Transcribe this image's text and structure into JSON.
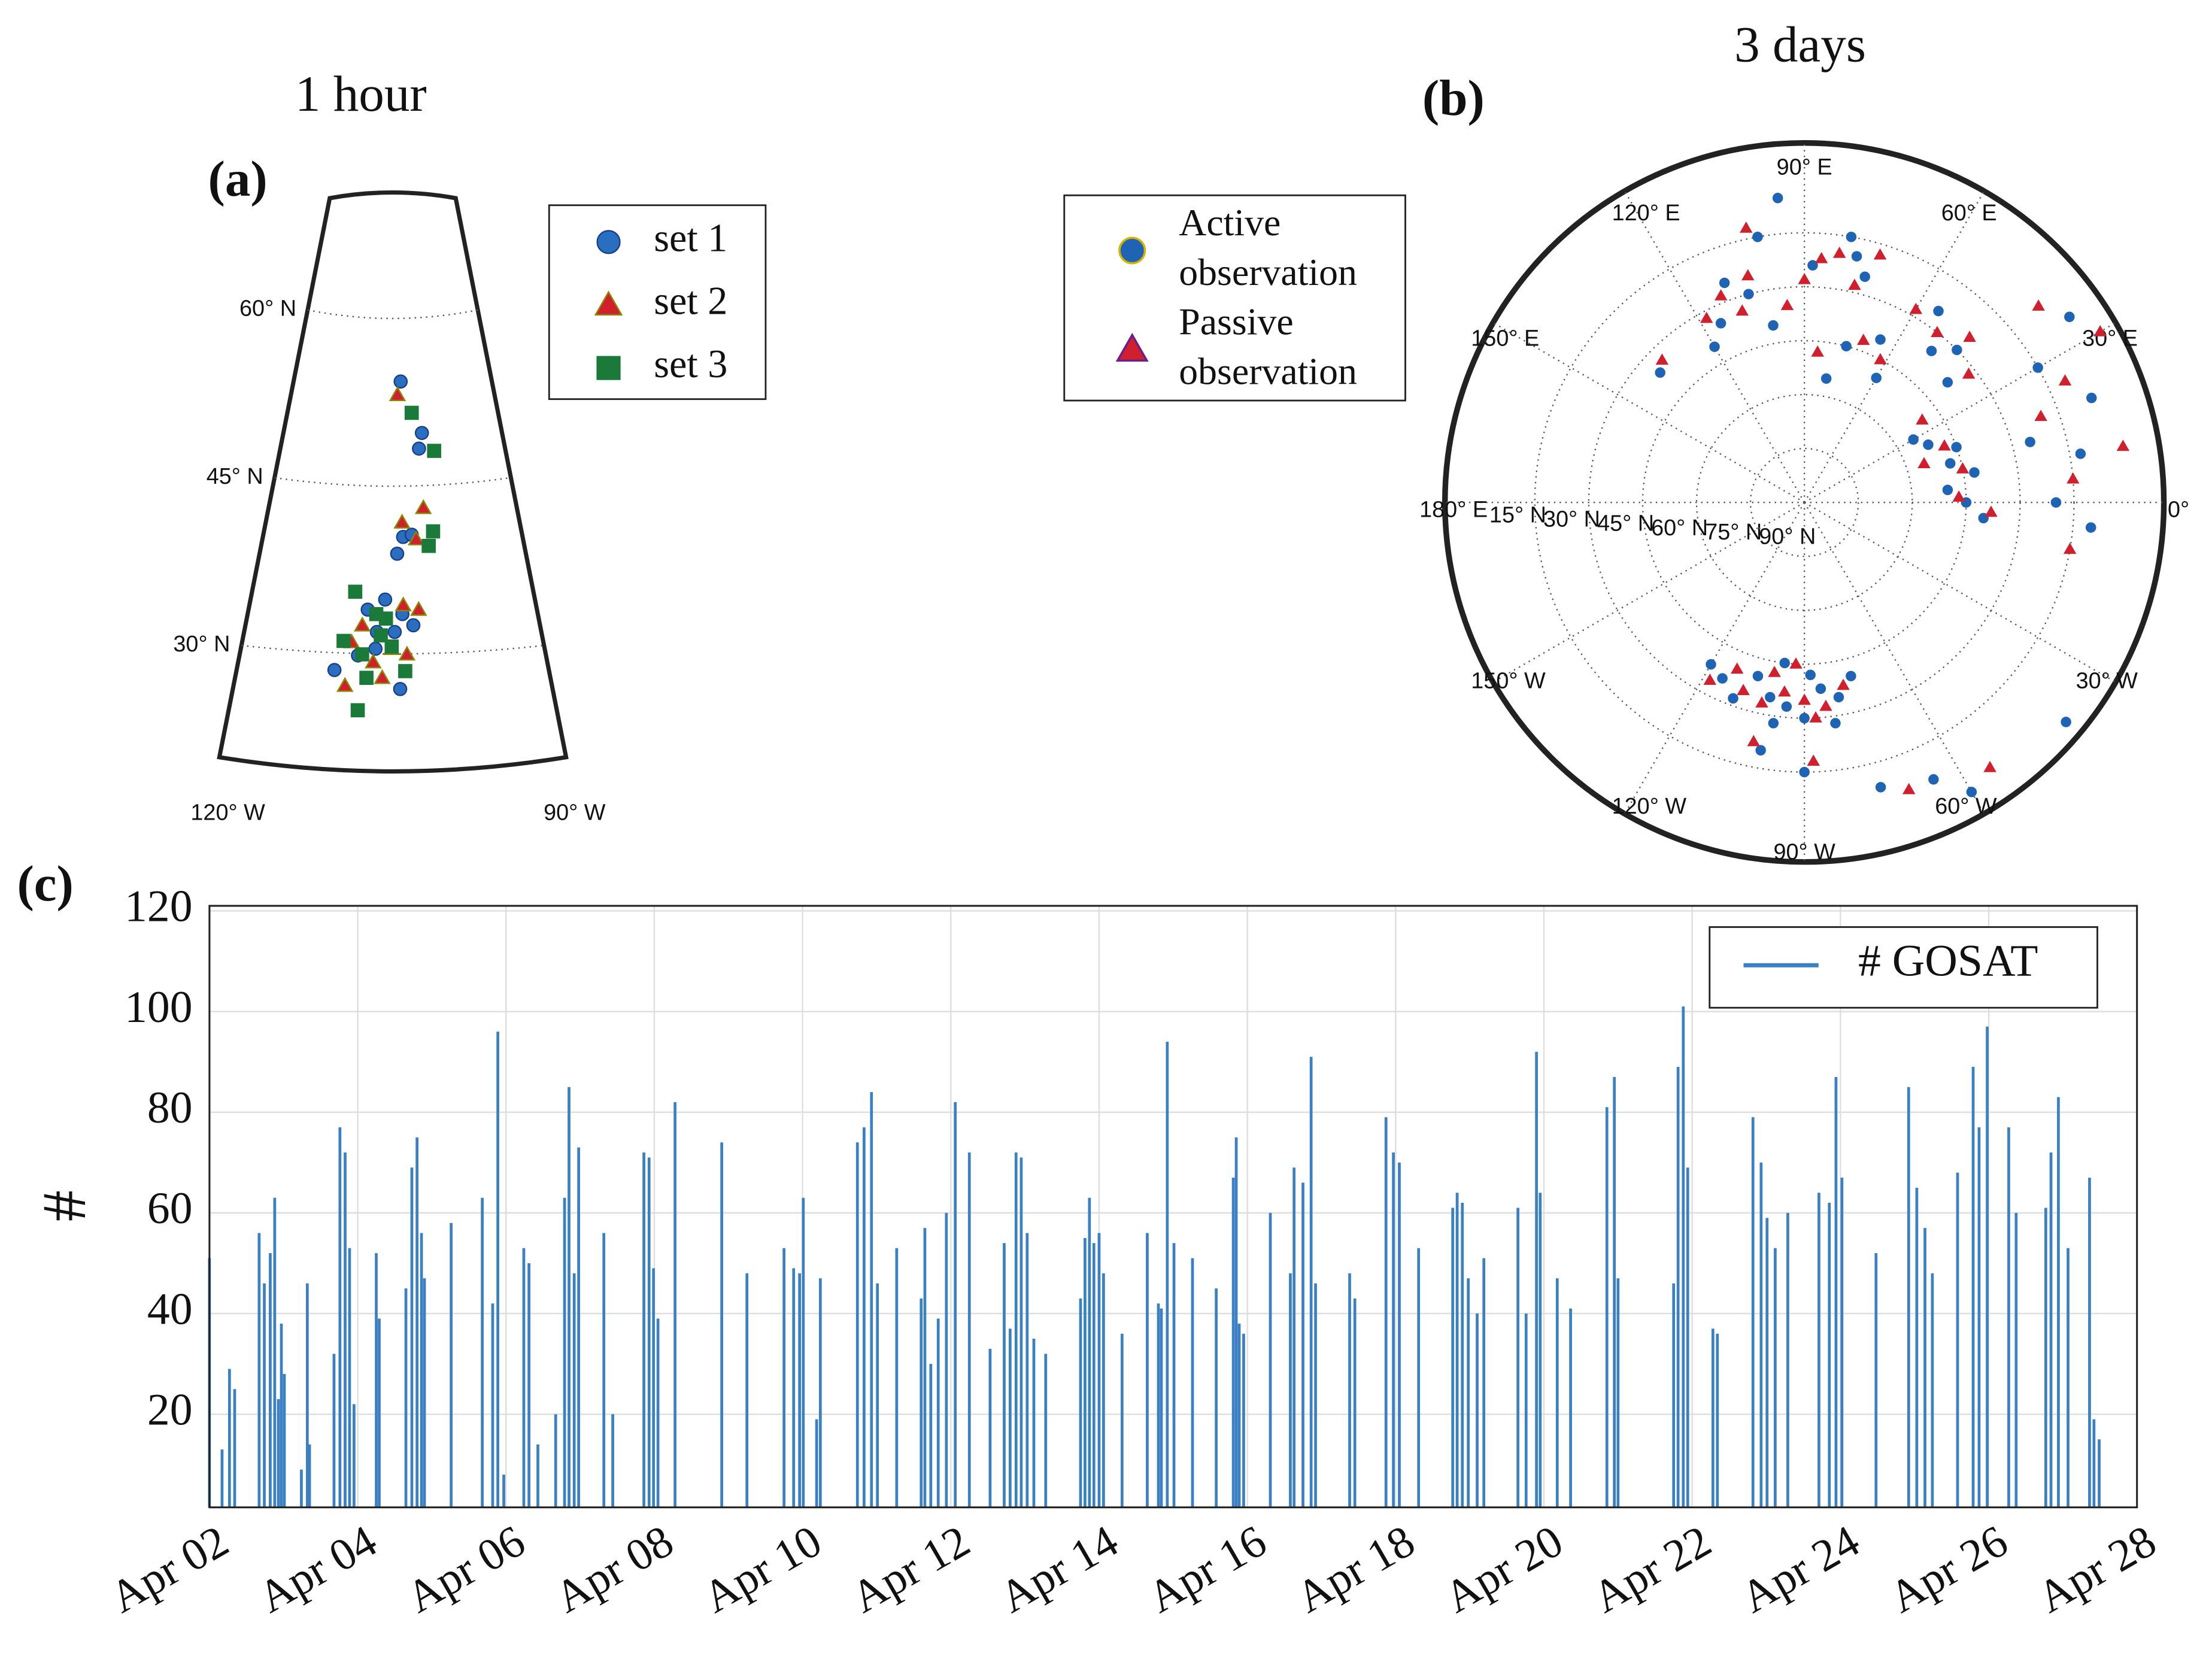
{
  "chart_data": [
    {
      "type": "conic_map",
      "title": "1 hour",
      "panel_label": "(a)",
      "xlim": [
        -120,
        -90
      ],
      "ylim": [
        20,
        70
      ],
      "xticks": [
        {
          "value": -120,
          "label": "120° W"
        },
        {
          "value": -90,
          "label": "90° W"
        }
      ],
      "yticks": [
        {
          "value": 30,
          "label": "30° N"
        },
        {
          "value": 45,
          "label": "45° N"
        },
        {
          "value": 60,
          "label": "60° N"
        }
      ],
      "grid": true,
      "series": [
        {
          "name": "set 1",
          "marker": "circle",
          "color": "#2a6fbf",
          "edgecolor": "#1a3f8a",
          "x": [
            -103.8,
            -101.0,
            -101.5,
            -103.8,
            -102.8,
            -104.5,
            -107.6,
            -105.8,
            -104.0,
            -106.6,
            -104.8,
            -102.9,
            -110.6,
            -106.7,
            -104.3,
            -108.4
          ],
          "y": [
            53.6,
            49.0,
            47.6,
            39.7,
            39.9,
            38.2,
            33.2,
            34.1,
            32.8,
            31.2,
            31.2,
            31.8,
            27.8,
            29.7,
            26.1,
            29.1
          ]
        },
        {
          "name": "set 2",
          "marker": "triangle",
          "color": "#d0202e",
          "edgecolor": "#8a8a00",
          "x": [
            -104.3,
            -101.3,
            -103.9,
            -102.3,
            -108.1,
            -106.9,
            -103.9,
            -102.3,
            -105.1,
            -103.6,
            -109.5,
            -106.0,
            -109.1
          ],
          "y": [
            52.4,
            42.3,
            41.0,
            39.5,
            31.8,
            28.5,
            33.6,
            33.2,
            29.7,
            29.2,
            26.4,
            27.1,
            30.3
          ]
        },
        {
          "name": "set 3",
          "marker": "square",
          "color": "#1b7a3a",
          "edgecolor": "#1b7a3a",
          "x": [
            -102.3,
            -99.5,
            -100.3,
            -100.9,
            -109.0,
            -109.9,
            -106.7,
            -105.7,
            -106.2,
            -105.1,
            -103.8,
            -107.5,
            -108.2,
            -108.0
          ],
          "y": [
            50.8,
            47.4,
            40.2,
            38.9,
            34.8,
            30.4,
            32.8,
            32.4,
            30.9,
            29.9,
            27.7,
            27.1,
            24.2,
            29.2
          ]
        }
      ]
    },
    {
      "type": "polar_map",
      "title": "3 days",
      "panel_label": "(b)",
      "ylim": [
        -10,
        90
      ],
      "xticks": [
        {
          "value": 0,
          "label": "0°"
        },
        {
          "value": 30,
          "label": "30° E"
        },
        {
          "value": 60,
          "label": "60° E"
        },
        {
          "value": 90,
          "label": "90° E"
        },
        {
          "value": 120,
          "label": "120° E"
        },
        {
          "value": 150,
          "label": "150° E"
        },
        {
          "value": 180,
          "label": "180° E"
        },
        {
          "value": -150,
          "label": "150° W"
        },
        {
          "value": -120,
          "label": "120° W"
        },
        {
          "value": -90,
          "label": "90° W"
        },
        {
          "value": -60,
          "label": "60° W"
        },
        {
          "value": -30,
          "label": "30° W"
        }
      ],
      "yticks": [
        {
          "value": 15,
          "label": "15° N"
        },
        {
          "value": 30,
          "label": "30° N"
        },
        {
          "value": 45,
          "label": "45° N"
        },
        {
          "value": 60,
          "label": "60° N"
        },
        {
          "value": 75,
          "label": "75° N"
        },
        {
          "value": 90,
          "label": "90° N"
        }
      ],
      "grid": true,
      "series": [
        {
          "name": "Active observation",
          "marker": "circle",
          "color": "#1f63b5",
          "edgecolor": "#d4b400",
          "x": [
            -100,
            -95,
            -105,
            -85,
            -90,
            -80,
            -110,
            -97,
            -115,
            -75,
            -120,
            -88,
            -98,
            -82,
            -100,
            -90,
            -75,
            -65,
            -60,
            -40,
            0,
            5,
            15,
            25,
            10,
            -5,
            30,
            20,
            10,
            -5,
            20,
            30,
            15,
            0,
            35,
            45,
            50,
            40,
            55,
            65,
            60,
            75,
            80,
            78,
            80,
            75,
            88,
            105,
            115,
            110,
            100,
            120,
            138,
            100,
            95
          ],
          "y": [
            35,
            33,
            40,
            38,
            30,
            35,
            32,
            45,
            36,
            40,
            38,
            42,
            28,
            28,
            20,
            15,
            8,
            5,
            -3,
            -5,
            45,
            50,
            48,
            52,
            42,
            40,
            55,
            45,
            12,
            10,
            5,
            15,
            25,
            20,
            0,
            30,
            35,
            38,
            25,
            40,
            50,
            45,
            55,
            20,
            15,
            25,
            24,
            30,
            35,
            25,
            40,
            40,
            36,
            15,
            5
          ]
        },
        {
          "name": "Passive observation",
          "marker": "triangle",
          "color": "#d0202e",
          "edgecolor": "#6a1f8a",
          "x": [
            -102,
            -96,
            -90,
            -108,
            -84,
            -112,
            -78,
            -100,
            -118,
            -93,
            -87,
            -102,
            -88,
            -70,
            -55,
            2,
            12,
            22,
            -3,
            35,
            18,
            5,
            25,
            -10,
            30,
            10,
            40,
            20,
            45,
            52,
            38,
            60,
            70,
            62,
            85,
            77,
            82,
            86,
            73,
            108,
            112,
            118,
            104,
            95,
            135,
            102,
            90
          ],
          "y": [
            33,
            37,
            35,
            35,
            33,
            40,
            38,
            42,
            34,
            45,
            30,
            22,
            18,
            5,
            0,
            47,
            45,
            48,
            38,
            50,
            55,
            15,
            10,
            15,
            -5,
            0,
            5,
            20,
            25,
            30,
            32,
            28,
            42,
            45,
            48,
            28,
            20,
            22,
            18,
            34,
            28,
            32,
            25,
            35,
            34,
            12,
            28
          ]
        }
      ]
    },
    {
      "type": "bar",
      "panel_label": "(c)",
      "ylabel": "#",
      "xlim": [
        0,
        26
      ],
      "ylim": [
        1.5,
        121
      ],
      "xticks": [
        {
          "value": 0,
          "label": "Apr 02"
        },
        {
          "value": 2,
          "label": "Apr 04"
        },
        {
          "value": 4,
          "label": "Apr 06"
        },
        {
          "value": 6,
          "label": "Apr 08"
        },
        {
          "value": 8,
          "label": "Apr 10"
        },
        {
          "value": 10,
          "label": "Apr 12"
        },
        {
          "value": 12,
          "label": "Apr 14"
        },
        {
          "value": 14,
          "label": "Apr 16"
        },
        {
          "value": 16,
          "label": "Apr 18"
        },
        {
          "value": 18,
          "label": "Apr 20"
        },
        {
          "value": 20,
          "label": "Apr 22"
        },
        {
          "value": 22,
          "label": "Apr 24"
        },
        {
          "value": 24,
          "label": "Apr 26"
        },
        {
          "value": 26,
          "label": "Apr 28"
        }
      ],
      "yticks": [
        20,
        40,
        60,
        80,
        100,
        120
      ],
      "grid": true,
      "legend": "upper right",
      "series": [
        {
          "name": "# GOSAT",
          "color": "#3a80c2",
          "x": [
            0,
            0.17,
            0.27,
            0.34,
            0.67,
            0.74,
            0.82,
            0.88,
            0.93,
            0.97,
            1.01,
            1.24,
            1.32,
            1.35,
            1.68,
            1.76,
            1.83,
            1.89,
            1.95,
            2.25,
            2.29,
            2.65,
            2.73,
            2.8,
            2.86,
            2.9,
            3.26,
            3.68,
            3.82,
            3.89,
            3.97,
            4.24,
            4.31,
            4.43,
            4.67,
            4.79,
            4.85,
            4.92,
            4.98,
            5.32,
            5.44,
            5.86,
            5.93,
            5.99,
            6.05,
            6.28,
            6.91,
            7.25,
            7.75,
            7.88,
            7.96,
            8.01,
            8.19,
            8.24,
            8.74,
            8.83,
            8.93,
            9.01,
            9.27,
            9.6,
            9.65,
            9.73,
            9.83,
            9.94,
            10.06,
            10.25,
            10.53,
            10.72,
            10.8,
            10.88,
            10.95,
            11.03,
            11.12,
            11.28,
            11.75,
            11.81,
            11.87,
            11.93,
            12.0,
            12.06,
            12.31,
            12.65,
            12.8,
            12.84,
            12.92,
            13.01,
            13.26,
            13.58,
            13.81,
            13.85,
            13.89,
            13.95,
            14.31,
            14.58,
            14.63,
            14.75,
            14.86,
            14.92,
            15.38,
            15.45,
            15.87,
            15.97,
            16.05,
            16.31,
            16.77,
            16.83,
            16.9,
            16.98,
            17.1,
            17.19,
            17.65,
            17.76,
            17.9,
            17.95,
            18.18,
            18.36,
            18.85,
            18.95,
            19.0,
            19.75,
            19.81,
            19.88,
            19.94,
            20.28,
            20.34,
            20.82,
            20.93,
            21.01,
            21.12,
            21.29,
            21.71,
            21.85,
            21.94,
            22.02,
            22.48,
            22.92,
            23.03,
            23.14,
            23.24,
            23.58,
            23.79,
            23.87,
            23.98,
            24.27,
            24.37,
            24.77,
            24.84,
            24.94,
            25.07,
            25.36,
            25.42,
            25.49
          ],
          "values": [
            51,
            13,
            29,
            25,
            56,
            46,
            52,
            63,
            23,
            38,
            28,
            9,
            46,
            14,
            32,
            77,
            72,
            53,
            22,
            52,
            39,
            45,
            69,
            75,
            56,
            47,
            58,
            63,
            42,
            96,
            8,
            53,
            50,
            14,
            20,
            63,
            85,
            48,
            73,
            56,
            20,
            72,
            71,
            49,
            39,
            82,
            74,
            48,
            53,
            49,
            48,
            63,
            19,
            47,
            74,
            77,
            84,
            46,
            53,
            43,
            57,
            30,
            39,
            60,
            82,
            72,
            33,
            54,
            37,
            72,
            71,
            56,
            35,
            32,
            43,
            55,
            63,
            54,
            56,
            48,
            36,
            56,
            42,
            41,
            94,
            54,
            51,
            45,
            67,
            75,
            38,
            36,
            60,
            48,
            69,
            66,
            91,
            46,
            48,
            43,
            79,
            72,
            70,
            53,
            61,
            64,
            62,
            47,
            40,
            51,
            61,
            40,
            92,
            64,
            47,
            41,
            81,
            87,
            47,
            46,
            89,
            101,
            69,
            37,
            36,
            79,
            70,
            59,
            53,
            60,
            64,
            62,
            87,
            67,
            52,
            85,
            65,
            57,
            48,
            68,
            89,
            77,
            97,
            77,
            60,
            61,
            72,
            83,
            53,
            67,
            19,
            15
          ]
        }
      ]
    }
  ]
}
